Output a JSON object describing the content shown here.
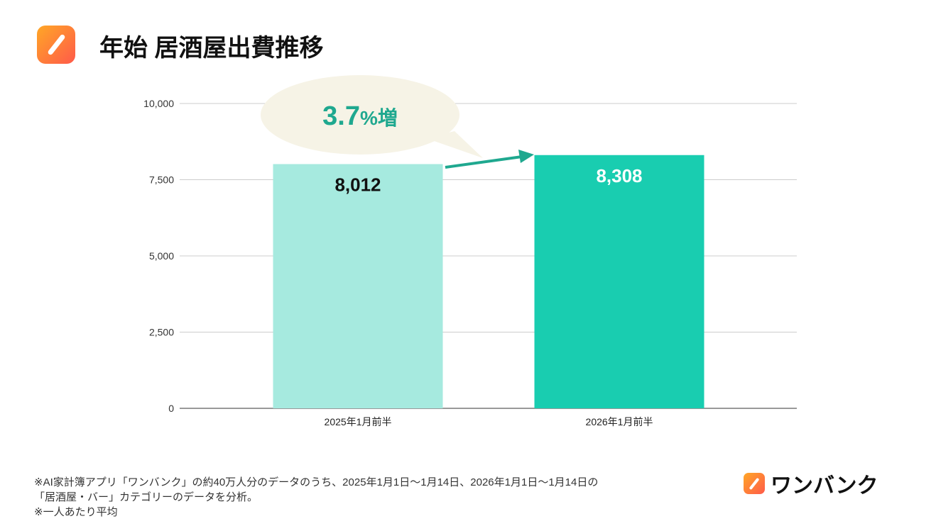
{
  "header": {
    "title": "年始 居酒屋出費推移",
    "logo_icon": "wanbank-logo-icon"
  },
  "chart_data": {
    "type": "bar",
    "title": "年始 居酒屋出費推移",
    "categories": [
      "2025年1月前半",
      "2026年1月前半"
    ],
    "values": [
      8012,
      8308
    ],
    "value_labels": [
      "8,012",
      "8,308"
    ],
    "ylim": [
      0,
      10000
    ],
    "yticks": [
      0,
      2500,
      5000,
      7500,
      10000
    ],
    "ytick_labels": [
      "0",
      "2,500",
      "5,000",
      "7,500",
      "10,000"
    ],
    "grid": true,
    "colors": [
      "#a6eadf",
      "#19cdb0"
    ],
    "label_colors": [
      "#111111",
      "#ffffff"
    ],
    "annotation": {
      "value": "3.7",
      "unit": "%増",
      "color": "#1fa88f",
      "bubble_color": "#f6f3e6"
    }
  },
  "footer": {
    "notes": [
      "※AI家計簿アプリ「ワンバンク」の約40万人分のデータのうち、2025年1月1日〜1月14日、2026年1月1日〜1月14日の",
      "「居酒屋・バー」カテゴリーのデータを分析。",
      "※一人あたり平均"
    ],
    "brand": "ワンバンク"
  }
}
